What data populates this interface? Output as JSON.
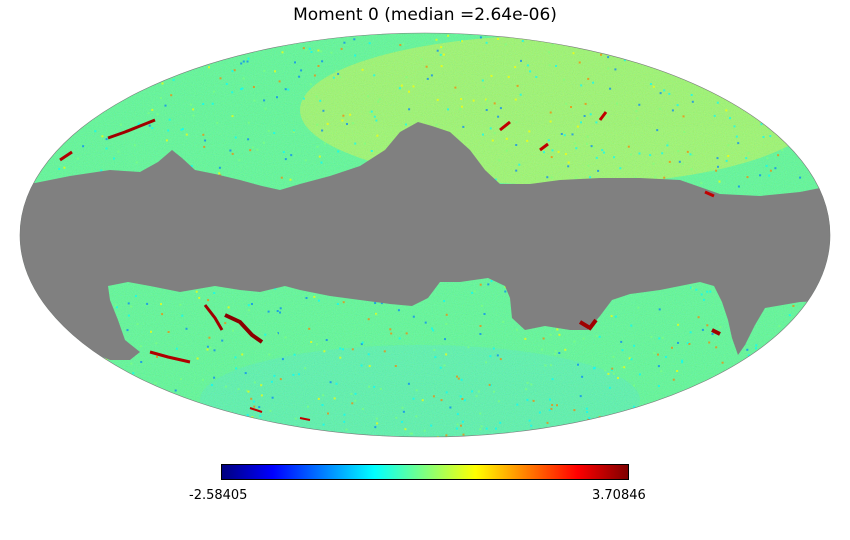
{
  "map": {
    "title": "Moment 0 (median =2.64e-06)",
    "projection": "mollweide",
    "mask_color": "#808080",
    "colormap": "jet",
    "colormap_stops": [
      "#00007f",
      "#0000ff",
      "#007fff",
      "#00ffff",
      "#7fff7f",
      "#ffff00",
      "#ff7f00",
      "#ff0000",
      "#7f0000"
    ],
    "base_color": "#4bf59b"
  },
  "colorbar": {
    "min_label": "-2.58405",
    "max_label": "3.70846",
    "min_value": -2.58405,
    "max_value": 3.70846
  }
}
